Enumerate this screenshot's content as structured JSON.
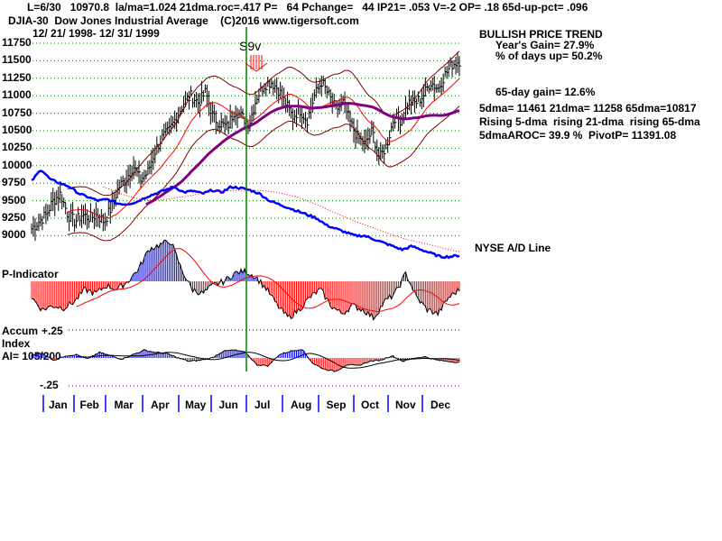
{
  "header": {
    "line1": "L=6/30   10970.8  la/ma=1.024 21dma.roc=.417 P=   64 Pchange=   44 IP21= .053 V=-2 OP= .18 65d-up-pct= .096",
    "line2": "DJIA-30  Dow Jones Industrial Average    (C)2016 www.tigersoft.com",
    "line3": "12/ 21/ 1998- 12/ 31/ 1999"
  },
  "stats": {
    "trend": "BULLISH PRICE TREND",
    "year_gain": "Year's Gain= 27.9%",
    "days_up": "% of days up= 50.2%",
    "gain65": "65-day gain= 12.6%",
    "dma": "5dma= 11461 21dma= 11258 65dma=10817",
    "rising": "Rising 5-dma  rising 21-dma  rising 65-dma",
    "aroc": "5dmaAROC= 39.9 %  PivotP= 11391.08"
  },
  "labels": {
    "ad_line": "NYSE A/D Line",
    "p_indicator": "P-Indicator",
    "accum1": "Accum",
    "accum2": "Index",
    "ai": "AI= 105/200",
    "plus25": "+.25",
    "minus25": "-.25",
    "signal": "S9v"
  },
  "colors": {
    "price": "#000000",
    "ma21": "#ff0000",
    "ma65": "#800080",
    "bands": "#800000",
    "ad": "#0000ff",
    "grid": "#008000",
    "pos": "#0000ff",
    "neg": "#ff0000"
  },
  "chart_data": {
    "type": "line",
    "title": "DJIA-30 Dow Jones Industrial Average",
    "ylim": [
      9000,
      11750
    ],
    "yticks": [
      "11750",
      "11500",
      "11250",
      "11000",
      "10750",
      "10500",
      "10250",
      "10000",
      "9750",
      "9500",
      "9250",
      "9000"
    ],
    "months": [
      "Jan",
      "Feb",
      "Mar",
      "Apr",
      "May",
      "Jun",
      "Jul",
      "Aug",
      "Sep",
      "Oct",
      "Nov",
      "Dec"
    ],
    "weekly_close": [
      9100,
      9200,
      9300,
      9500,
      9600,
      9300,
      9200,
      9300,
      9250,
      9300,
      9200,
      9400,
      9700,
      9800,
      10000,
      9800,
      9900,
      10200,
      10400,
      10500,
      10700,
      10900,
      11000,
      10900,
      11050,
      10700,
      10600,
      10550,
      10800,
      10700,
      10600,
      10970,
      11150,
      11200,
      11100,
      10900,
      10700,
      10800,
      10650,
      11000,
      11200,
      11000,
      10800,
      10900,
      10600,
      10400,
      10300,
      10500,
      10100,
      10300,
      10700,
      10650,
      10900,
      10900,
      11000,
      11200,
      11100,
      11300,
      11450,
      11500
    ],
    "ad_line": [
      9780,
      9950,
      9800,
      9750,
      9700,
      9600,
      9550,
      9500,
      9520,
      9460,
      9450,
      9480,
      9550,
      9600,
      9650,
      9700,
      9620,
      9640,
      9600,
      9650,
      9620,
      9700,
      9680,
      9650,
      9600,
      9500,
      9450,
      9400,
      9350,
      9300,
      9250,
      9150,
      9100,
      9050,
      9000,
      9000,
      8950,
      8900,
      8850,
      8800,
      8850,
      8800,
      8750,
      8700,
      8700,
      8720
    ],
    "p_indicator": [
      -40,
      -70,
      -60,
      -65,
      -50,
      -20,
      -30,
      -10,
      -20,
      0,
      30,
      80,
      90,
      100,
      30,
      -20,
      -30,
      -10,
      0,
      20,
      25,
      10,
      -20,
      -60,
      -90,
      -70,
      -40,
      -20,
      -60,
      -80,
      -60,
      -70,
      -90,
      -50,
      -30,
      20,
      -40,
      -70,
      -80,
      -40,
      -20
    ],
    "accum_index": [
      0.03,
      0.04,
      -0.02,
      0.02,
      0.03,
      -0.01,
      0.05,
      0.02,
      -0.01,
      0.03,
      0.07,
      0.05,
      0.04,
      0.0,
      -0.03,
      -0.02,
      0.0,
      0.06,
      0.07,
      0.05,
      -0.06,
      -0.07,
      0.03,
      0.06,
      0.08,
      -0.05,
      -0.1,
      -0.12,
      -0.06,
      -0.07,
      -0.03,
      -0.02,
      0.02,
      -0.03,
      0.0,
      0.01,
      -0.02,
      -0.03,
      -0.04
    ],
    "signals": [
      {
        "label": "S9v",
        "date": "7/1/1999"
      }
    ]
  }
}
